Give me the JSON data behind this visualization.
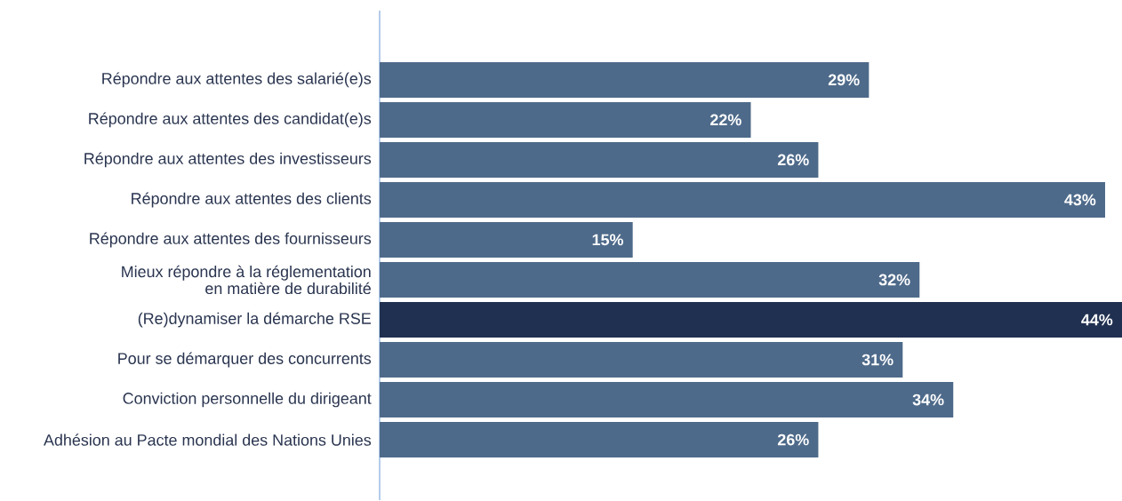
{
  "chart_data": {
    "type": "bar",
    "orientation": "horizontal",
    "categories": [
      "Répondre aux attentes des salarié(e)s",
      "Répondre aux attentes des candidat(e)s",
      "Répondre aux attentes des investisseurs",
      "Répondre aux attentes des clients",
      "Répondre aux attentes des fournisseurs",
      "Mieux répondre à la réglementation en matière de durabilité",
      "(Re)dynamiser la démarche RSE",
      "Pour se démarquer des concurrents",
      "Conviction personnelle du dirigeant",
      "Adhésion au Pacte mondial des Nations Unies"
    ],
    "values": [
      29,
      22,
      26,
      43,
      15,
      32,
      44,
      31,
      34,
      26
    ],
    "value_labels": [
      "29%",
      "22%",
      "26%",
      "43%",
      "15%",
      "32%",
      "44%",
      "31%",
      "34%",
      "26%"
    ],
    "colors": [
      "#4e6a8a",
      "#4e6a8a",
      "#4e6a8a",
      "#4e6a8a",
      "#4e6a8a",
      "#4e6a8a",
      "#1f3050",
      "#4e6a8a",
      "#4e6a8a",
      "#4e6a8a"
    ],
    "tick_labels": "y"
  }
}
